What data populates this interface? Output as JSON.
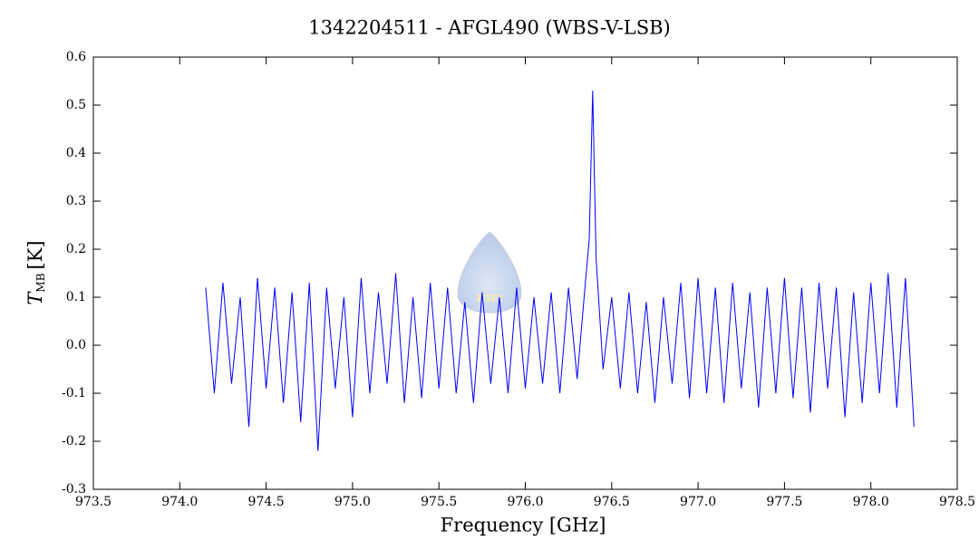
{
  "chart_data": {
    "type": "line",
    "title": "1342204511 - AFGL490 (WBS-V-LSB)",
    "x_label": "Frequency [GHz]",
    "y_label": {
      "symbol": "T",
      "subscript": "MB",
      "unit": "[K]"
    },
    "watermark": "HIFI",
    "xlim": [
      973.5,
      978.5
    ],
    "xticks": [
      973.5,
      {
        "value": 974,
        "label": "974.0"
      },
      974.5,
      {
        "value": 975,
        "label": "975.0"
      },
      975.5,
      {
        "value": 976,
        "label": "976.0"
      },
      976.5,
      {
        "value": 977,
        "label": "977.0"
      },
      977.5,
      {
        "value": 978,
        "label": "978.0"
      },
      978.5
    ],
    "ylim": [
      -0.3,
      0.6
    ],
    "yticks": [
      -0.3,
      -0.2,
      -0.1,
      {
        "value": 0,
        "label": "0.0"
      },
      0.1,
      0.2,
      0.3,
      0.4,
      0.5,
      0.6
    ],
    "series": [
      {
        "color": "#0000ff",
        "x": [
          974.15,
          974.2,
          974.25,
          974.3,
          974.35,
          974.4,
          974.45,
          974.5,
          974.55,
          974.6,
          974.65,
          974.7,
          974.75,
          974.8,
          974.85,
          974.9,
          974.95,
          975.0,
          975.05,
          975.1,
          975.15,
          975.2,
          975.25,
          975.3,
          975.35,
          975.4,
          975.45,
          975.5,
          975.55,
          975.6,
          975.65,
          975.7,
          975.75,
          975.8,
          975.85,
          975.9,
          975.95,
          976.0,
          976.05,
          976.1,
          976.15,
          976.2,
          976.25,
          976.3,
          976.35,
          976.37,
          976.39,
          976.4,
          976.41,
          976.45,
          976.5,
          976.55,
          976.6,
          976.65,
          976.7,
          976.75,
          976.8,
          976.85,
          976.9,
          976.95,
          977.0,
          977.05,
          977.1,
          977.15,
          977.2,
          977.25,
          977.3,
          977.35,
          977.4,
          977.45,
          977.5,
          977.55,
          977.6,
          977.65,
          977.7,
          977.75,
          977.8,
          977.85,
          977.9,
          977.95,
          978.0,
          978.05,
          978.1,
          978.15,
          978.2,
          978.25
        ],
        "values": [
          0.12,
          -0.1,
          0.13,
          -0.08,
          0.1,
          -0.17,
          0.14,
          -0.09,
          0.12,
          -0.12,
          0.11,
          -0.16,
          0.13,
          -0.22,
          0.12,
          -0.09,
          0.1,
          -0.15,
          0.14,
          -0.1,
          0.11,
          -0.08,
          0.15,
          -0.12,
          0.1,
          -0.11,
          0.13,
          -0.09,
          0.12,
          -0.1,
          0.09,
          -0.12,
          0.11,
          -0.08,
          0.1,
          -0.1,
          0.12,
          -0.09,
          0.1,
          -0.08,
          0.11,
          -0.1,
          0.12,
          -0.07,
          0.14,
          0.22,
          0.53,
          0.35,
          0.18,
          -0.05,
          0.1,
          -0.09,
          0.11,
          -0.1,
          0.09,
          -0.12,
          0.1,
          -0.08,
          0.13,
          -0.11,
          0.14,
          -0.1,
          0.12,
          -0.12,
          0.13,
          -0.09,
          0.11,
          -0.13,
          0.12,
          -0.1,
          0.14,
          -0.11,
          0.12,
          -0.14,
          0.13,
          -0.09,
          0.12,
          -0.15,
          0.11,
          -0.12,
          0.13,
          -0.1,
          0.15,
          -0.13,
          0.14,
          -0.17
        ]
      }
    ]
  }
}
